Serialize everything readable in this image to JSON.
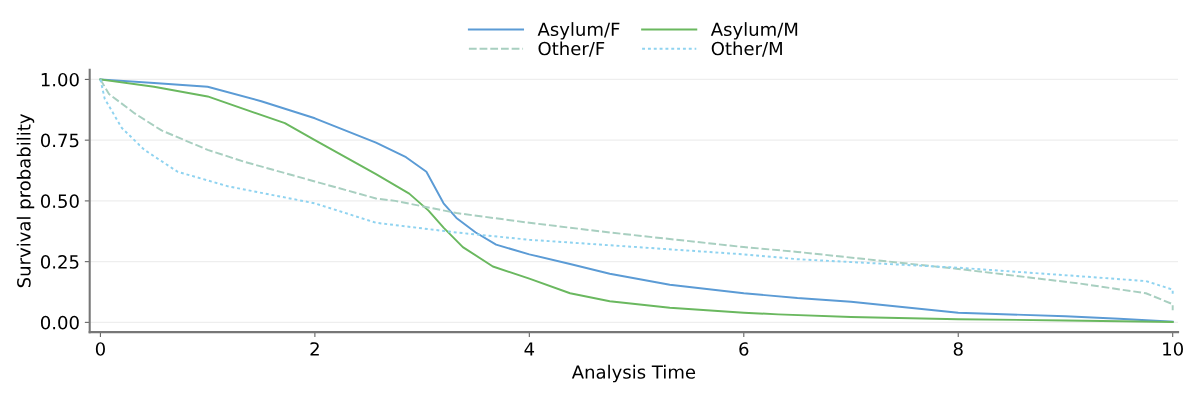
{
  "chart_data": {
    "type": "line",
    "xlabel": "Analysis Time",
    "ylabel": "Survival probability",
    "xlim": [
      -0.1,
      10.05
    ],
    "ylim": [
      -0.04,
      1.04
    ],
    "xticks": [
      0,
      2,
      4,
      6,
      8,
      10
    ],
    "yticks": [
      {
        "value": 0,
        "label": "0.00"
      },
      {
        "value": 0.25,
        "label": "0.25"
      },
      {
        "value": 0.5,
        "label": "0.50"
      },
      {
        "value": 0.75,
        "label": "0.75"
      },
      {
        "value": 1,
        "label": "1.00"
      }
    ],
    "grid": "y",
    "legend": "top",
    "marker": "none",
    "series": [
      {
        "name": "Asylum/F",
        "color": "#5b9bd5",
        "line_style": "solid",
        "x": [
          0,
          0.5,
          1,
          1.5,
          2,
          2.57,
          2.85,
          3.04,
          3.2,
          3.32,
          3.5,
          3.69,
          4,
          4.38,
          4.75,
          5.31,
          6,
          6.5,
          7,
          8,
          9,
          9.5,
          10
        ],
        "values": [
          1,
          0.985,
          0.97,
          0.91,
          0.84,
          0.74,
          0.68,
          0.62,
          0.49,
          0.43,
          0.37,
          0.32,
          0.28,
          0.24,
          0.2,
          0.155,
          0.12,
          0.1,
          0.085,
          0.04,
          0.025,
          0.015,
          0.003
        ]
      },
      {
        "name": "Asylum/M",
        "color": "#6ab85f",
        "line_style": "solid",
        "x": [
          0,
          0.5,
          1,
          1.72,
          2,
          2.57,
          2.88,
          3.06,
          3.2,
          3.38,
          3.66,
          4,
          4.38,
          4.75,
          5.31,
          6,
          6.32,
          7,
          8,
          9,
          10
        ],
        "values": [
          1,
          0.97,
          0.93,
          0.82,
          0.75,
          0.61,
          0.53,
          0.46,
          0.39,
          0.31,
          0.23,
          0.18,
          0.12,
          0.087,
          0.06,
          0.04,
          0.033,
          0.022,
          0.013,
          0.008,
          0.002
        ]
      },
      {
        "name": "Other/F",
        "color": "#a8cfc0",
        "line_style": "dashed",
        "x": [
          0,
          0.08,
          0.32,
          0.57,
          1,
          1.35,
          2,
          2.57,
          2.75,
          3.32,
          4,
          4.75,
          6,
          6.5,
          8,
          9.13,
          9.75,
          10,
          10
        ],
        "values": [
          1,
          0.94,
          0.86,
          0.79,
          0.71,
          0.66,
          0.58,
          0.51,
          0.5,
          0.45,
          0.41,
          0.37,
          0.31,
          0.29,
          0.22,
          0.16,
          0.12,
          0.075,
          0.05
        ]
      },
      {
        "name": "Other/M",
        "color": "#8fd3f0",
        "line_style": "dotted",
        "x": [
          0,
          0.04,
          0.2,
          0.41,
          0.72,
          1.19,
          2,
          2.57,
          3.32,
          4,
          6,
          6.5,
          8,
          9.13,
          9.75,
          10,
          10
        ],
        "values": [
          1,
          0.92,
          0.8,
          0.71,
          0.62,
          0.56,
          0.49,
          0.41,
          0.37,
          0.34,
          0.28,
          0.26,
          0.225,
          0.19,
          0.17,
          0.135,
          0.11
        ]
      }
    ]
  }
}
